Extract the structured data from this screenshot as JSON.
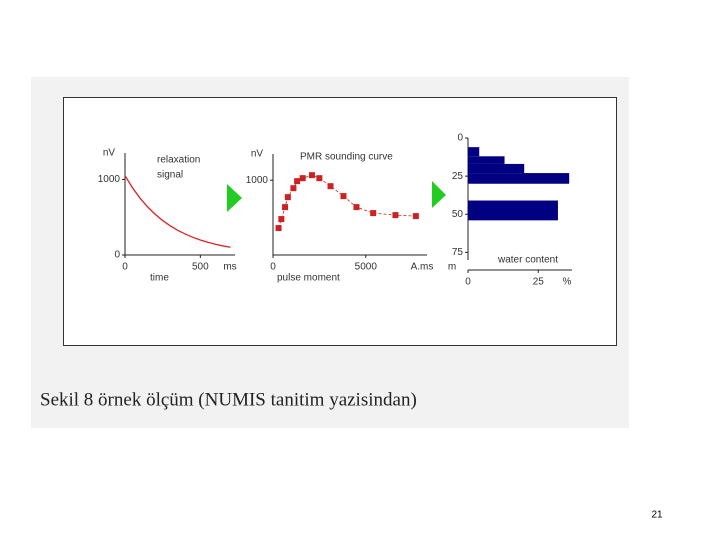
{
  "chart_data": [
    {
      "type": "line",
      "y_label": "nV",
      "annotation": [
        "relaxation",
        "signal"
      ],
      "x_label": "time",
      "x_unit": "ms",
      "x": [
        0,
        50,
        100,
        150,
        200,
        250,
        300,
        350,
        400,
        450,
        500,
        550,
        600,
        650,
        700
      ],
      "values": [
        1050,
        889,
        752,
        637,
        539,
        456,
        386,
        327,
        277,
        234,
        198,
        168,
        142,
        120,
        102
      ],
      "color": "#dd2222",
      "xlim": [
        0,
        730
      ],
      "ylim": [
        0,
        1350
      ],
      "xticks": [
        0,
        500
      ],
      "yticks": [
        0,
        1000
      ]
    },
    {
      "type": "line",
      "markers": true,
      "y_label": "nV",
      "title": "PMR sounding curve",
      "x_label": "pulse moment",
      "x_unit": "A.ms",
      "x": [
        300,
        450,
        650,
        800,
        1100,
        1300,
        1600,
        2100,
        2500,
        3100,
        3800,
        4500,
        5400,
        6600,
        7700
      ],
      "values": [
        360,
        480,
        640,
        773,
        893,
        987,
        1027,
        1067,
        1027,
        920,
        787,
        640,
        560,
        533,
        520
      ],
      "color": "#cc2222",
      "xlim": [
        0,
        8300
      ],
      "ylim": [
        0,
        1350
      ],
      "xticks": [
        0,
        5000
      ],
      "yticks": [
        1000
      ]
    },
    {
      "type": "histogram",
      "orientation": "horizontal",
      "y_inverted": true,
      "x_label": "water content",
      "x_unit": "%",
      "y_unit": "m",
      "bins": [
        6,
        12,
        17,
        23,
        30,
        41,
        54
      ],
      "values": [
        4,
        13,
        20,
        36,
        0,
        32
      ],
      "color": "#000080",
      "xlim": [
        0,
        37
      ],
      "ylim": [
        0,
        80
      ],
      "xticks": [
        0,
        25
      ],
      "yticks": [
        0,
        25,
        50,
        75
      ]
    }
  ],
  "caption": "Sekil 8 örnek ölçüm (NUMIS tanitim yazisindan)",
  "page_number": "21"
}
